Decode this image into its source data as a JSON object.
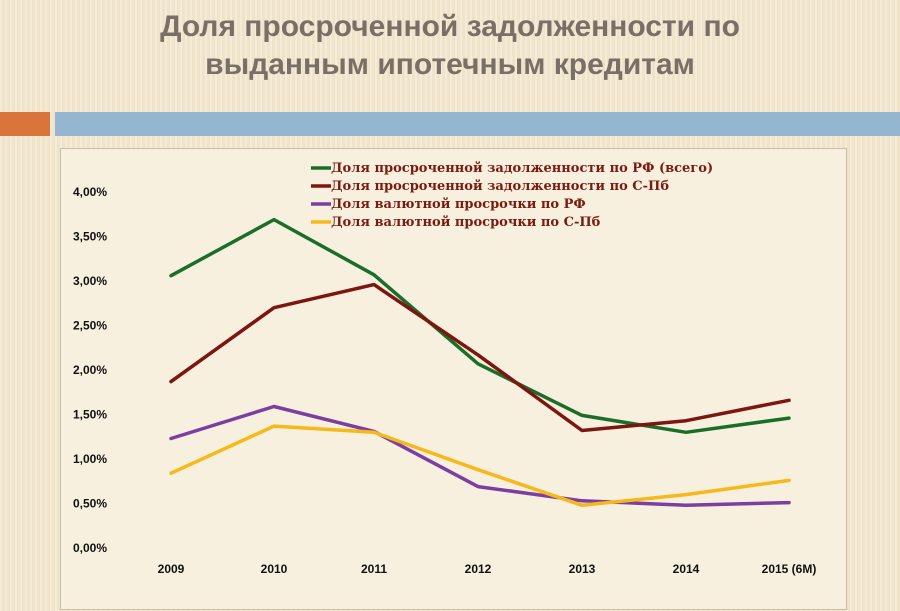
{
  "title": {
    "line1": "Доля просроченной задолженности по",
    "line2": "выданным ипотечным кредитам"
  },
  "chart_data": {
    "type": "line",
    "title": "Доля просроченной задолженности по выданным ипотечным кредитам",
    "categories": [
      "2009",
      "2010",
      "2011",
      "2012",
      "2013",
      "2014",
      "2015 (6M)"
    ],
    "y_tick_labels": [
      "0,00%",
      "0,50%",
      "1,00%",
      "1,50%",
      "2,00%",
      "2,50%",
      "3,00%",
      "3,50%",
      "4,00%"
    ],
    "ylim": [
      0,
      4
    ],
    "grid": false,
    "legend_position": "top-right",
    "series": [
      {
        "name": "Доля просроченной задолженности по РФ (всего)",
        "color": "#1a6e2a",
        "values": [
          3.06,
          3.69,
          3.07,
          2.07,
          1.49,
          1.3,
          1.46
        ]
      },
      {
        "name": "Доля просроченной задолженности по С-Пб",
        "color": "#7d1510",
        "values": [
          1.87,
          2.7,
          2.96,
          2.17,
          1.32,
          1.43,
          1.66
        ]
      },
      {
        "name": "Доля валютной просрочки по РФ",
        "color": "#7a3fa0",
        "values": [
          1.23,
          1.59,
          1.31,
          0.69,
          0.53,
          0.48,
          0.51
        ]
      },
      {
        "name": "Доля валютной просрочки по С-Пб",
        "color": "#f7b81a",
        "values": [
          0.84,
          1.37,
          1.3,
          0.88,
          0.48,
          0.6,
          0.76
        ]
      }
    ]
  }
}
